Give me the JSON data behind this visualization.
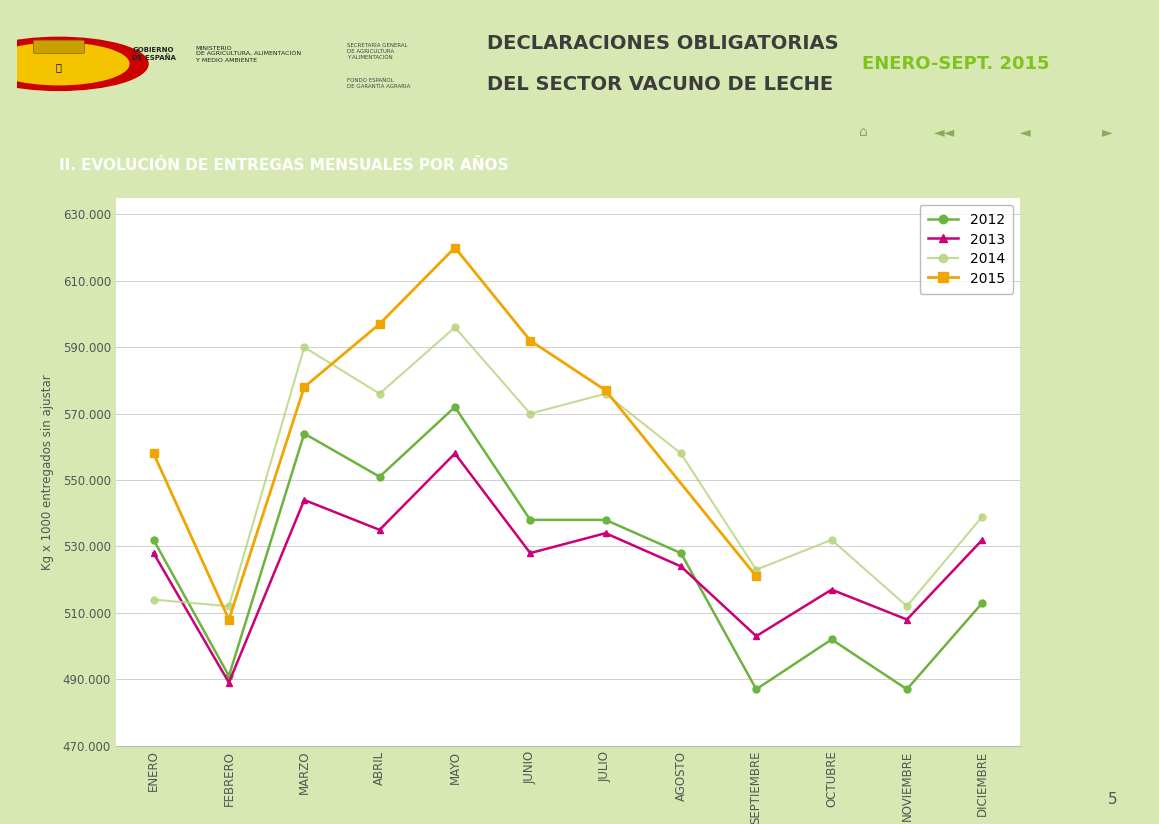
{
  "months": [
    "ENERO",
    "FEBRERO",
    "MARZO",
    "ABRIL",
    "MAYO",
    "JUNIO",
    "JULIO",
    "AGOSTO",
    "SEPTIEMBRE",
    "OCTUBRE",
    "NOVIEMBRE",
    "DICIEMBRE"
  ],
  "series": {
    "2012": [
      532000,
      491000,
      564000,
      551000,
      572000,
      538000,
      538000,
      528000,
      487000,
      502000,
      487000,
      513000
    ],
    "2013": [
      528000,
      489000,
      544000,
      535000,
      558000,
      528000,
      534000,
      524000,
      503000,
      517000,
      508000,
      532000
    ],
    "2014": [
      514000,
      512000,
      590000,
      576000,
      596000,
      570000,
      576000,
      558000,
      523000,
      532000,
      512000,
      539000
    ],
    "2015": [
      558000,
      508000,
      578000,
      597000,
      620000,
      592000,
      577000,
      null,
      521000,
      null,
      null,
      null
    ]
  },
  "colors": {
    "2012": "#6db33f",
    "2013": "#cc0077",
    "2014": "#b5d47a",
    "2015": "#f0a500"
  },
  "markers": {
    "2012": "o",
    "2013": "^",
    "2014": "o",
    "2015": "s"
  },
  "markersizes": {
    "2012": 5,
    "2013": 5,
    "2014": 5,
    "2015": 6
  },
  "linewidths": {
    "2012": 1.8,
    "2013": 1.8,
    "2014": 1.5,
    "2015": 2.0
  },
  "alphas": {
    "2012": 1.0,
    "2013": 1.0,
    "2014": 0.8,
    "2015": 1.0
  },
  "ylim": [
    470000,
    635000
  ],
  "yticks": [
    470000,
    490000,
    510000,
    530000,
    550000,
    570000,
    590000,
    610000,
    630000
  ],
  "ylabel": "Kg x 1000 entregados sin ajustar",
  "section_title": "II. EVOLUCIÓN DE ENTREGAS MENSUALES POR AÑOS",
  "section_bg": "#7fc41e",
  "section_text_color": "#ffffff",
  "page_bg": "#d8e8b2",
  "chart_bg": "#ffffff",
  "grid_color": "#d0d0d0",
  "legend_years": [
    "2012",
    "2013",
    "2014",
    "2015"
  ],
  "header_title_line1": "DECLARACIONES OBLIGATORIAS",
  "header_title_line2": "DEL SECTOR VACUNO DE LECHE",
  "header_date": "ENERO-SEPT. 2015",
  "header_title_color": "#3d3d3d",
  "header_date_color": "#7fc41e",
  "logo_bg": "#f5c400",
  "page_number": "5"
}
